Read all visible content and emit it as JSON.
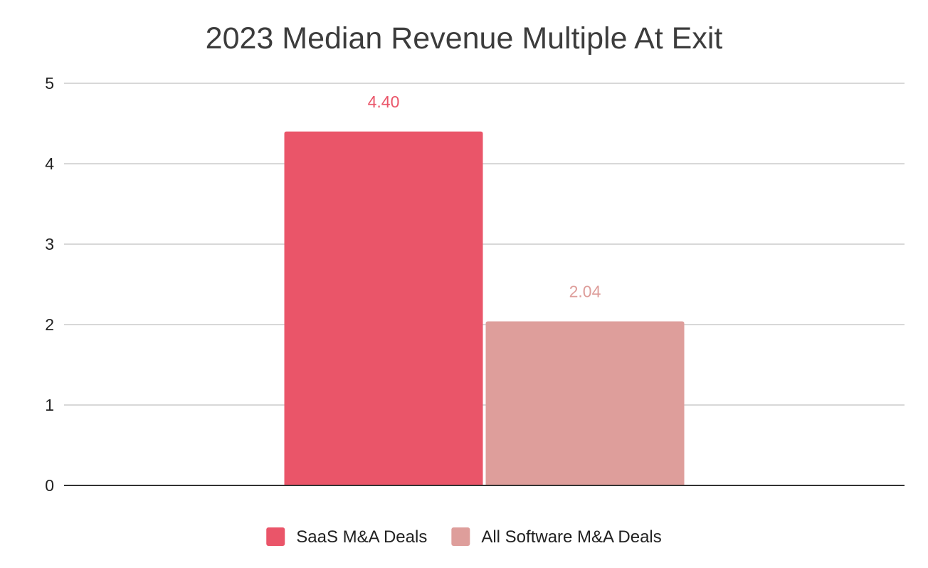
{
  "chart_data": {
    "type": "bar",
    "title": "2023 Median Revenue Multiple At Exit",
    "xlabel": "",
    "ylabel": "",
    "ylim": [
      0,
      5
    ],
    "y_ticks": [
      "0",
      "1",
      "2",
      "3",
      "4",
      "5"
    ],
    "grid": true,
    "legend_position": "bottom",
    "series": [
      {
        "name": "SaaS M&A Deals",
        "value": 4.4,
        "label": "4.40",
        "color": "#ea5569"
      },
      {
        "name": "All Software M&A Deals",
        "value": 2.04,
        "label": "2.04",
        "color": "#de9e9b"
      }
    ]
  }
}
